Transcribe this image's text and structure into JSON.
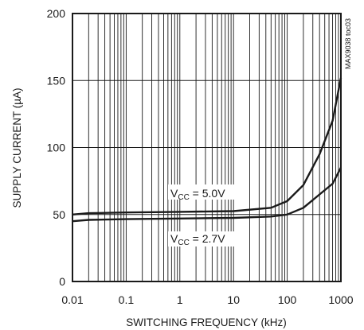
{
  "chart_data": {
    "type": "line",
    "title": "",
    "xlabel": "SWITCHING FREQUENCY (kHz)",
    "ylabel": "SUPPLY CURRENT (µA)",
    "xscale": "log",
    "xlim": [
      0.01,
      1000
    ],
    "ylim": [
      0,
      200
    ],
    "grid": true,
    "xticks": [
      0.01,
      0.1,
      1,
      10,
      100,
      1000
    ],
    "xtick_labels": [
      "0.01",
      "0.1",
      "1",
      "10",
      "100",
      "1000"
    ],
    "yticks": [
      0,
      50,
      100,
      150,
      200
    ],
    "ytick_labels": [
      "0",
      "50",
      "100",
      "150",
      "200"
    ],
    "figure_id": "MAX9038 toc03",
    "series": [
      {
        "name": "VCC = 5.0V",
        "label_main": "V",
        "label_sub": "CC",
        "label_rest": " = 5.0V",
        "x": [
          0.01,
          0.02,
          0.1,
          1,
          10,
          50,
          100,
          200,
          400,
          700,
          1000
        ],
        "y": [
          50,
          51,
          51.5,
          52,
          52.5,
          55,
          60,
          72,
          95,
          120,
          152
        ]
      },
      {
        "name": "VCC = 2.7V",
        "label_main": "V",
        "label_sub": "CC",
        "label_rest": " = 2.7V",
        "x": [
          0.01,
          0.02,
          0.1,
          1,
          10,
          50,
          100,
          200,
          400,
          700,
          1000
        ],
        "y": [
          45,
          46,
          46.5,
          47,
          47.5,
          48.5,
          50,
          55,
          65,
          73,
          85
        ]
      }
    ]
  }
}
